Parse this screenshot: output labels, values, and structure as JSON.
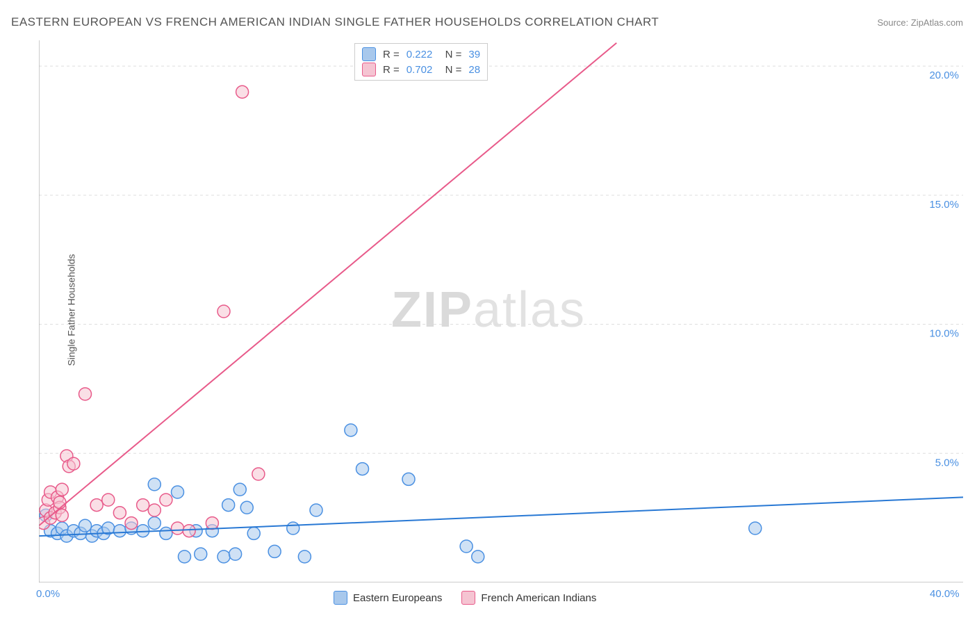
{
  "title": "EASTERN EUROPEAN VS FRENCH AMERICAN INDIAN SINGLE FATHER HOUSEHOLDS CORRELATION CHART",
  "source": "Source: ZipAtlas.com",
  "y_axis_label": "Single Father Households",
  "watermark": {
    "bold": "ZIP",
    "light": "atlas"
  },
  "chart": {
    "type": "scatter",
    "background_color": "#ffffff",
    "grid_color": "#dddddd",
    "axis_color": "#999999",
    "marker_radius": 9,
    "marker_stroke_width": 1.5,
    "trend_line_width": 2,
    "xlim": [
      0,
      40
    ],
    "ylim": [
      0,
      21
    ],
    "x_ticks": [
      {
        "value": 0,
        "label": "0.0%"
      },
      {
        "value": 40,
        "label": "40.0%"
      }
    ],
    "y_ticks": [
      {
        "value": 5,
        "label": "5.0%"
      },
      {
        "value": 10,
        "label": "10.0%"
      },
      {
        "value": 15,
        "label": "15.0%"
      },
      {
        "value": 20,
        "label": "20.0%"
      }
    ],
    "series": [
      {
        "name": "Eastern Europeans",
        "fill_color": "#a8c8ec",
        "stroke_color": "#4a90e2",
        "trend_color": "#2878d4",
        "R": "0.222",
        "N": "39",
        "trend": {
          "x1": 0,
          "y1": 1.8,
          "x2": 40,
          "y2": 3.3
        },
        "points": [
          [
            0.3,
            2.6
          ],
          [
            0.5,
            2.0
          ],
          [
            0.8,
            1.9
          ],
          [
            1.0,
            2.1
          ],
          [
            1.2,
            1.8
          ],
          [
            1.5,
            2.0
          ],
          [
            1.8,
            1.9
          ],
          [
            2.0,
            2.2
          ],
          [
            2.3,
            1.8
          ],
          [
            2.5,
            2.0
          ],
          [
            2.8,
            1.9
          ],
          [
            3.0,
            2.1
          ],
          [
            3.5,
            2.0
          ],
          [
            4.0,
            2.1
          ],
          [
            4.5,
            2.0
          ],
          [
            5.0,
            2.3
          ],
          [
            5.0,
            3.8
          ],
          [
            5.5,
            1.9
          ],
          [
            6.0,
            3.5
          ],
          [
            6.3,
            1.0
          ],
          [
            6.8,
            2.0
          ],
          [
            7.0,
            1.1
          ],
          [
            7.5,
            2.0
          ],
          [
            8.0,
            1.0
          ],
          [
            8.2,
            3.0
          ],
          [
            8.5,
            1.1
          ],
          [
            8.7,
            3.6
          ],
          [
            9.0,
            2.9
          ],
          [
            9.3,
            1.9
          ],
          [
            10.2,
            1.2
          ],
          [
            11.0,
            2.1
          ],
          [
            11.5,
            1.0
          ],
          [
            12.0,
            2.8
          ],
          [
            13.5,
            5.9
          ],
          [
            14.0,
            4.4
          ],
          [
            16.0,
            4.0
          ],
          [
            18.5,
            1.4
          ],
          [
            19.0,
            1.0
          ],
          [
            31.0,
            2.1
          ]
        ]
      },
      {
        "name": "French American Indians",
        "fill_color": "#f5c4d2",
        "stroke_color": "#e85a8a",
        "trend_color": "#e85a8a",
        "R": "0.702",
        "N": "28",
        "trend": {
          "x1": 0,
          "y1": 2.2,
          "x2": 25,
          "y2": 20.9
        },
        "points": [
          [
            0.2,
            2.3
          ],
          [
            0.3,
            2.8
          ],
          [
            0.4,
            3.2
          ],
          [
            0.5,
            3.5
          ],
          [
            0.5,
            2.5
          ],
          [
            0.7,
            2.7
          ],
          [
            0.8,
            3.3
          ],
          [
            0.9,
            2.9
          ],
          [
            0.9,
            3.1
          ],
          [
            1.0,
            2.6
          ],
          [
            1.0,
            3.6
          ],
          [
            1.2,
            4.9
          ],
          [
            1.3,
            4.5
          ],
          [
            1.5,
            4.6
          ],
          [
            2.0,
            7.3
          ],
          [
            2.5,
            3.0
          ],
          [
            3.0,
            3.2
          ],
          [
            3.5,
            2.7
          ],
          [
            4.0,
            2.3
          ],
          [
            4.5,
            3.0
          ],
          [
            5.0,
            2.8
          ],
          [
            5.5,
            3.2
          ],
          [
            6.0,
            2.1
          ],
          [
            6.5,
            2.0
          ],
          [
            7.5,
            2.3
          ],
          [
            8.0,
            10.5
          ],
          [
            9.5,
            4.2
          ],
          [
            8.8,
            19.0
          ]
        ]
      }
    ]
  },
  "legend_top": {
    "r_label": "R =",
    "n_label": "N ="
  },
  "legend_bottom": [
    {
      "label": "Eastern Europeans",
      "fill": "#a8c8ec",
      "stroke": "#4a90e2"
    },
    {
      "label": "French American Indians",
      "fill": "#f5c4d2",
      "stroke": "#e85a8a"
    }
  ]
}
